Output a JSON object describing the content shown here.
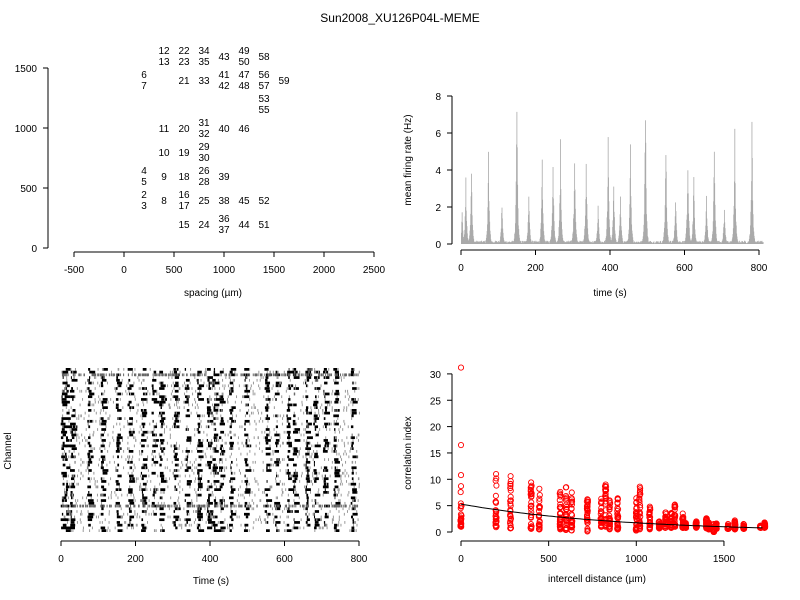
{
  "title": "Sun2008_XU126P04L-MEME",
  "chart_data": [
    {
      "type": "scatter",
      "name": "electrode-layout",
      "xlabel": "spacing (µm)",
      "ylabel": "",
      "xlim": [
        -500,
        2500
      ],
      "ylim": [
        0,
        1600
      ],
      "xticks": [
        -500,
        0,
        500,
        1000,
        1500,
        2000,
        2500
      ],
      "yticks": [
        0,
        500,
        1000,
        1500
      ],
      "points": [
        {
          "x": 400,
          "y": 1600,
          "labels": [
            "12",
            "13"
          ]
        },
        {
          "x": 600,
          "y": 1600,
          "labels": [
            "22",
            "23"
          ]
        },
        {
          "x": 800,
          "y": 1600,
          "labels": [
            "34",
            "35"
          ]
        },
        {
          "x": 1000,
          "y": 1600,
          "labels": [
            "43"
          ]
        },
        {
          "x": 1200,
          "y": 1600,
          "labels": [
            "49",
            "50"
          ]
        },
        {
          "x": 1400,
          "y": 1600,
          "labels": [
            "58"
          ]
        },
        {
          "x": 200,
          "y": 1400,
          "labels": [
            "6",
            "7"
          ]
        },
        {
          "x": 600,
          "y": 1400,
          "labels": [
            "21"
          ]
        },
        {
          "x": 800,
          "y": 1400,
          "labels": [
            "33"
          ]
        },
        {
          "x": 1000,
          "y": 1400,
          "labels": [
            "41",
            "42"
          ]
        },
        {
          "x": 1200,
          "y": 1400,
          "labels": [
            "47",
            "48"
          ]
        },
        {
          "x": 1400,
          "y": 1400,
          "labels": [
            "56",
            "57"
          ]
        },
        {
          "x": 1600,
          "y": 1400,
          "labels": [
            "59"
          ]
        },
        {
          "x": 1400,
          "y": 1200,
          "labels": [
            "53",
            "55"
          ]
        },
        {
          "x": 400,
          "y": 1000,
          "labels": [
            "11"
          ]
        },
        {
          "x": 600,
          "y": 1000,
          "labels": [
            "20"
          ]
        },
        {
          "x": 800,
          "y": 1000,
          "labels": [
            "31",
            "32"
          ]
        },
        {
          "x": 1000,
          "y": 1000,
          "labels": [
            "40"
          ]
        },
        {
          "x": 1200,
          "y": 1000,
          "labels": [
            "46"
          ]
        },
        {
          "x": 400,
          "y": 800,
          "labels": [
            "10"
          ]
        },
        {
          "x": 600,
          "y": 800,
          "labels": [
            "19"
          ]
        },
        {
          "x": 800,
          "y": 800,
          "labels": [
            "29",
            "30"
          ]
        },
        {
          "x": 200,
          "y": 600,
          "labels": [
            "4",
            "5"
          ]
        },
        {
          "x": 400,
          "y": 600,
          "labels": [
            "9"
          ]
        },
        {
          "x": 600,
          "y": 600,
          "labels": [
            "18"
          ]
        },
        {
          "x": 800,
          "y": 600,
          "labels": [
            "26",
            "28"
          ]
        },
        {
          "x": 1000,
          "y": 600,
          "labels": [
            "39"
          ]
        },
        {
          "x": 200,
          "y": 400,
          "labels": [
            "2",
            "3"
          ]
        },
        {
          "x": 400,
          "y": 400,
          "labels": [
            "8"
          ]
        },
        {
          "x": 600,
          "y": 400,
          "labels": [
            "16",
            "17"
          ]
        },
        {
          "x": 800,
          "y": 400,
          "labels": [
            "25"
          ]
        },
        {
          "x": 1000,
          "y": 400,
          "labels": [
            "38"
          ]
        },
        {
          "x": 1200,
          "y": 400,
          "labels": [
            "45"
          ]
        },
        {
          "x": 1400,
          "y": 400,
          "labels": [
            "52"
          ]
        },
        {
          "x": 600,
          "y": 200,
          "labels": [
            "15"
          ]
        },
        {
          "x": 800,
          "y": 200,
          "labels": [
            "24"
          ]
        },
        {
          "x": 1000,
          "y": 200,
          "labels": [
            "36",
            "37"
          ]
        },
        {
          "x": 1200,
          "y": 200,
          "labels": [
            "44"
          ]
        },
        {
          "x": 1400,
          "y": 200,
          "labels": [
            "51"
          ]
        }
      ]
    },
    {
      "type": "bar",
      "name": "mean-firing-rate",
      "xlabel": "time (s)",
      "ylabel": "mean firing rate (Hz)",
      "xlim": [
        0,
        800
      ],
      "ylim": [
        0,
        8
      ],
      "xticks": [
        0,
        200,
        400,
        600,
        800
      ],
      "yticks": [
        0,
        2,
        4,
        6,
        8
      ],
      "color": "#aaaaaa",
      "bursts": [
        [
          2,
          1.9
        ],
        [
          12,
          3.8
        ],
        [
          27,
          4.9
        ],
        [
          73,
          5.2
        ],
        [
          109,
          2.7
        ],
        [
          149,
          8.5
        ],
        [
          181,
          3.3
        ],
        [
          217,
          5.1
        ],
        [
          246,
          5.3
        ],
        [
          266,
          5.8
        ],
        [
          304,
          5.7
        ],
        [
          335,
          5.4
        ],
        [
          367,
          2.3
        ],
        [
          394,
          5.8
        ],
        [
          409,
          3.7
        ],
        [
          427,
          3.1
        ],
        [
          454,
          5.8
        ],
        [
          494,
          8.9
        ],
        [
          549,
          6.2
        ],
        [
          575,
          3.0
        ],
        [
          608,
          5.5
        ],
        [
          624,
          4.2
        ],
        [
          658,
          3.0
        ],
        [
          679,
          6.0
        ],
        [
          706,
          2.4
        ],
        [
          734,
          6.3
        ],
        [
          780,
          7.5
        ]
      ]
    },
    {
      "type": "raster",
      "name": "spike-raster",
      "xlabel": "Time (s)",
      "ylabel": "Channel",
      "xlim": [
        0,
        800
      ],
      "xticks": [
        0,
        200,
        400,
        600,
        800
      ],
      "channels": 60
    },
    {
      "type": "scatter",
      "name": "correlation-vs-distance",
      "xlabel": "intercell distance (µm)",
      "ylabel": "correlation index",
      "xlim": [
        0,
        1750
      ],
      "ylim": [
        0,
        31
      ],
      "xticks": [
        0,
        500,
        1000,
        1500
      ],
      "yticks": [
        0,
        5,
        10,
        15,
        20,
        25,
        30
      ],
      "color": "#ff0000",
      "outliers": [
        [
          0,
          31.2
        ],
        [
          0,
          16.5
        ],
        [
          0,
          10.8
        ]
      ],
      "columns": [
        [
          0,
          8.7,
          1
        ],
        [
          200,
          11,
          0.9
        ],
        [
          283,
          10.6,
          0.7
        ],
        [
          400,
          9.4,
          0.6
        ],
        [
          447,
          8.2,
          0.5
        ],
        [
          566,
          7.6,
          0.5
        ],
        [
          600,
          8.5,
          0.4
        ],
        [
          632,
          7.5,
          0.3
        ],
        [
          721,
          6.2,
          0.1
        ],
        [
          800,
          6.3,
          1
        ],
        [
          825,
          9,
          1
        ],
        [
          848,
          6,
          0.5
        ],
        [
          894,
          6.4,
          0.5
        ],
        [
          1000,
          6.4,
          0.3
        ],
        [
          1020,
          8.6,
          0.5
        ],
        [
          1077,
          4.8,
          0.5
        ],
        [
          1131,
          2,
          0.7
        ],
        [
          1166,
          3.7,
          0.8
        ],
        [
          1200,
          3.6,
          0.8
        ],
        [
          1220,
          5.2,
          1
        ],
        [
          1265,
          3.5,
          0.8
        ],
        [
          1281,
          1.7,
          0.8
        ],
        [
          1342,
          2,
          0.8
        ],
        [
          1400,
          2.6,
          0.7
        ],
        [
          1414,
          1.8,
          0.5
        ],
        [
          1442,
          1.5,
          0
        ],
        [
          1456,
          1.6,
          0.6
        ],
        [
          1523,
          1.5,
          0.6
        ],
        [
          1562,
          2.2,
          0.5
        ],
        [
          1612,
          1.5,
          0.6
        ],
        [
          1709,
          1.2,
          0.8
        ],
        [
          1732,
          1.8,
          0.8
        ]
      ],
      "fit": {
        "intercept": 5.3,
        "decay_length": 900
      }
    }
  ]
}
